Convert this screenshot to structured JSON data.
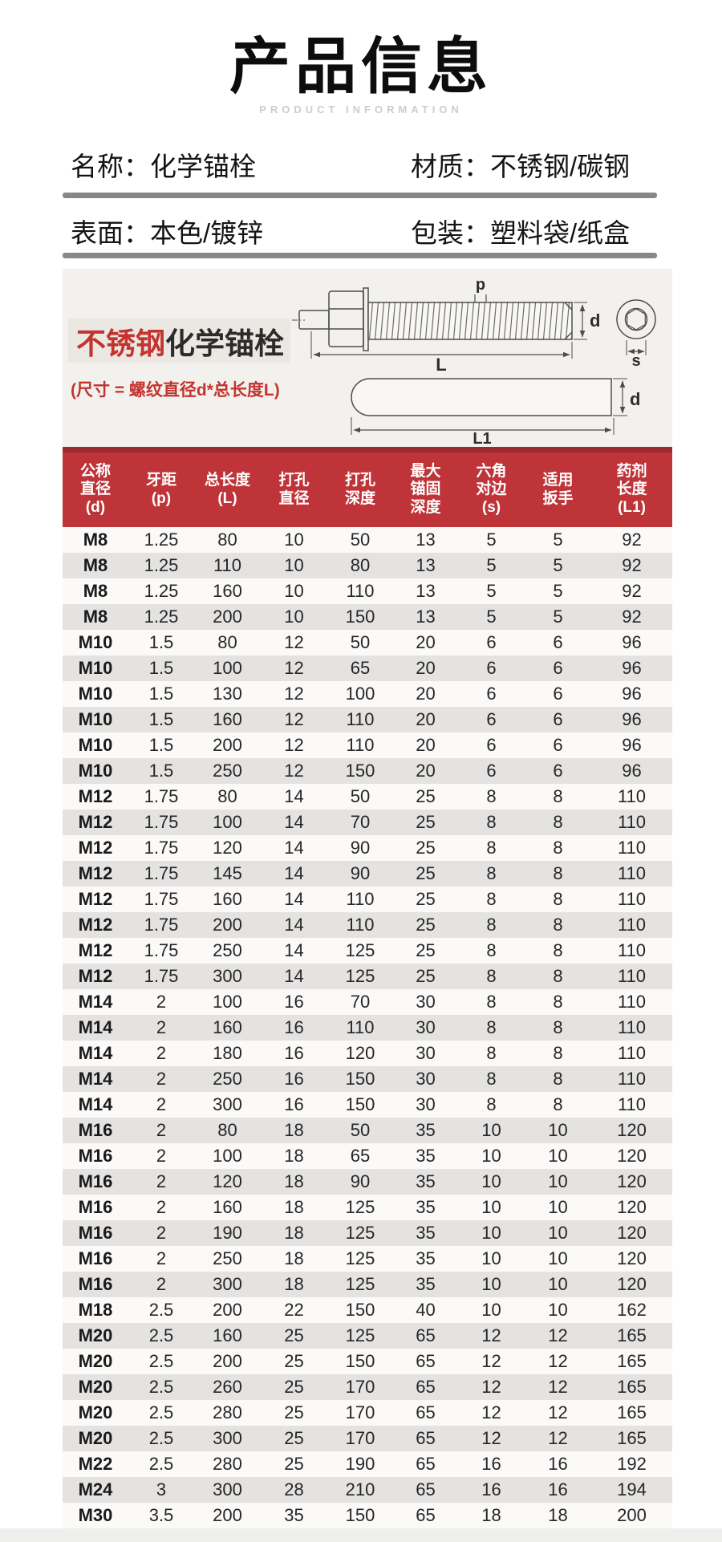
{
  "header": {
    "title": "产品信息",
    "subtitle": "PRODUCT INFORMATION"
  },
  "info": {
    "name_label": "名称：",
    "name_value": "化学锚栓",
    "material_label": "材质：",
    "material_value": "不锈钢/碳钢",
    "surface_label": "表面：",
    "surface_value": "本色/镀锌",
    "package_label": "包装：",
    "package_value": "塑料袋/纸盒"
  },
  "diagram": {
    "label_red": "不锈钢",
    "label_black": "化学锚栓",
    "size_note": "(尺寸 = 螺纹直径d*总长度L)",
    "dims": {
      "p": "p",
      "d": "d",
      "L": "L",
      "s": "s",
      "d2": "d",
      "L1": "L1"
    }
  },
  "table": {
    "headers": [
      [
        "公称",
        "直径",
        "(d)"
      ],
      [
        "牙距",
        "(p)"
      ],
      [
        "总长度",
        "(L)"
      ],
      [
        "打孔",
        "直径"
      ],
      [
        "打孔",
        "深度"
      ],
      [
        "最大",
        "锚固",
        "深度"
      ],
      [
        "六角",
        "对边",
        "(s)"
      ],
      [
        "适用",
        "扳手"
      ],
      [
        "药剂",
        "长度",
        "(L1)"
      ]
    ],
    "rows": [
      [
        "M8",
        "1.25",
        "80",
        "10",
        "50",
        "13",
        "5",
        "5",
        "92"
      ],
      [
        "M8",
        "1.25",
        "110",
        "10",
        "80",
        "13",
        "5",
        "5",
        "92"
      ],
      [
        "M8",
        "1.25",
        "160",
        "10",
        "110",
        "13",
        "5",
        "5",
        "92"
      ],
      [
        "M8",
        "1.25",
        "200",
        "10",
        "150",
        "13",
        "5",
        "5",
        "92"
      ],
      [
        "M10",
        "1.5",
        "80",
        "12",
        "50",
        "20",
        "6",
        "6",
        "96"
      ],
      [
        "M10",
        "1.5",
        "100",
        "12",
        "65",
        "20",
        "6",
        "6",
        "96"
      ],
      [
        "M10",
        "1.5",
        "130",
        "12",
        "100",
        "20",
        "6",
        "6",
        "96"
      ],
      [
        "M10",
        "1.5",
        "160",
        "12",
        "110",
        "20",
        "6",
        "6",
        "96"
      ],
      [
        "M10",
        "1.5",
        "200",
        "12",
        "110",
        "20",
        "6",
        "6",
        "96"
      ],
      [
        "M10",
        "1.5",
        "250",
        "12",
        "150",
        "20",
        "6",
        "6",
        "96"
      ],
      [
        "M12",
        "1.75",
        "80",
        "14",
        "50",
        "25",
        "8",
        "8",
        "110"
      ],
      [
        "M12",
        "1.75",
        "100",
        "14",
        "70",
        "25",
        "8",
        "8",
        "110"
      ],
      [
        "M12",
        "1.75",
        "120",
        "14",
        "90",
        "25",
        "8",
        "8",
        "110"
      ],
      [
        "M12",
        "1.75",
        "145",
        "14",
        "90",
        "25",
        "8",
        "8",
        "110"
      ],
      [
        "M12",
        "1.75",
        "160",
        "14",
        "110",
        "25",
        "8",
        "8",
        "110"
      ],
      [
        "M12",
        "1.75",
        "200",
        "14",
        "110",
        "25",
        "8",
        "8",
        "110"
      ],
      [
        "M12",
        "1.75",
        "250",
        "14",
        "125",
        "25",
        "8",
        "8",
        "110"
      ],
      [
        "M12",
        "1.75",
        "300",
        "14",
        "125",
        "25",
        "8",
        "8",
        "110"
      ],
      [
        "M14",
        "2",
        "100",
        "16",
        "70",
        "30",
        "8",
        "8",
        "110"
      ],
      [
        "M14",
        "2",
        "160",
        "16",
        "110",
        "30",
        "8",
        "8",
        "110"
      ],
      [
        "M14",
        "2",
        "180",
        "16",
        "120",
        "30",
        "8",
        "8",
        "110"
      ],
      [
        "M14",
        "2",
        "250",
        "16",
        "150",
        "30",
        "8",
        "8",
        "110"
      ],
      [
        "M14",
        "2",
        "300",
        "16",
        "150",
        "30",
        "8",
        "8",
        "110"
      ],
      [
        "M16",
        "2",
        "80",
        "18",
        "50",
        "35",
        "10",
        "10",
        "120"
      ],
      [
        "M16",
        "2",
        "100",
        "18",
        "65",
        "35",
        "10",
        "10",
        "120"
      ],
      [
        "M16",
        "2",
        "120",
        "18",
        "90",
        "35",
        "10",
        "10",
        "120"
      ],
      [
        "M16",
        "2",
        "160",
        "18",
        "125",
        "35",
        "10",
        "10",
        "120"
      ],
      [
        "M16",
        "2",
        "190",
        "18",
        "125",
        "35",
        "10",
        "10",
        "120"
      ],
      [
        "M16",
        "2",
        "250",
        "18",
        "125",
        "35",
        "10",
        "10",
        "120"
      ],
      [
        "M16",
        "2",
        "300",
        "18",
        "125",
        "35",
        "10",
        "10",
        "120"
      ],
      [
        "M18",
        "2.5",
        "200",
        "22",
        "150",
        "40",
        "10",
        "10",
        "162"
      ],
      [
        "M20",
        "2.5",
        "160",
        "25",
        "125",
        "65",
        "12",
        "12",
        "165"
      ],
      [
        "M20",
        "2.5",
        "200",
        "25",
        "150",
        "65",
        "12",
        "12",
        "165"
      ],
      [
        "M20",
        "2.5",
        "260",
        "25",
        "170",
        "65",
        "12",
        "12",
        "165"
      ],
      [
        "M20",
        "2.5",
        "280",
        "25",
        "170",
        "65",
        "12",
        "12",
        "165"
      ],
      [
        "M20",
        "2.5",
        "300",
        "25",
        "170",
        "65",
        "12",
        "12",
        "165"
      ],
      [
        "M22",
        "2.5",
        "280",
        "25",
        "190",
        "65",
        "16",
        "16",
        "192"
      ],
      [
        "M24",
        "3",
        "300",
        "28",
        "210",
        "65",
        "16",
        "16",
        "194"
      ],
      [
        "M30",
        "3.5",
        "200",
        "35",
        "150",
        "65",
        "18",
        "18",
        "200"
      ]
    ]
  },
  "colors": {
    "header_bg": "#bf3438",
    "header_top": "#9d2a2e",
    "accent_red": "#c3342f",
    "row_odd": "#fbfaf9",
    "row_even": "#e4e3e2"
  }
}
